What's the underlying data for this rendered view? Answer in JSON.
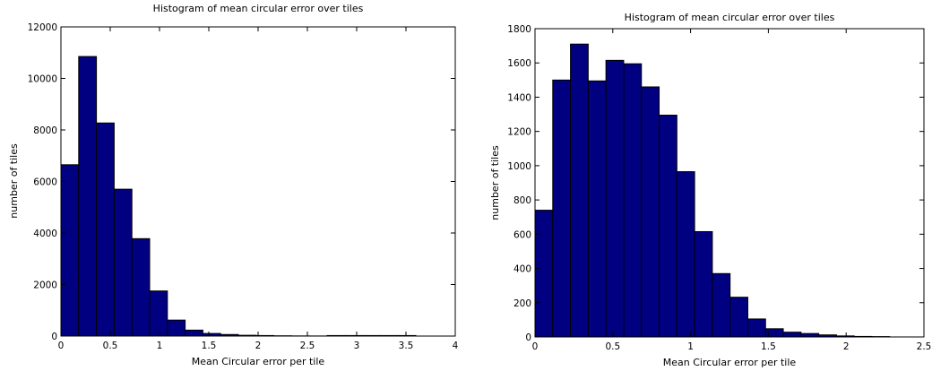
{
  "chart_data": [
    {
      "type": "bar",
      "title": "Histogram of mean circular error over tiles",
      "xlabel": "Mean Circular error per tile",
      "ylabel": "number of tiles",
      "xlim": [
        0,
        4
      ],
      "ylim": [
        0,
        12000
      ],
      "xticks": [
        "0",
        "0.5",
        "1",
        "1.5",
        "2",
        "2.5",
        "3",
        "3.5",
        "4"
      ],
      "yticks": [
        "0",
        "2000",
        "4000",
        "6000",
        "8000",
        "10000",
        "12000"
      ],
      "bar_color": "#000080",
      "bin_width": 0.18,
      "bins": [
        {
          "x": 0.0,
          "value": 6650
        },
        {
          "x": 0.18,
          "value": 10850
        },
        {
          "x": 0.36,
          "value": 8270
        },
        {
          "x": 0.54,
          "value": 5700
        },
        {
          "x": 0.72,
          "value": 3780
        },
        {
          "x": 0.9,
          "value": 1750
        },
        {
          "x": 1.08,
          "value": 620
        },
        {
          "x": 1.26,
          "value": 230
        },
        {
          "x": 1.44,
          "value": 100
        },
        {
          "x": 1.62,
          "value": 60
        },
        {
          "x": 1.8,
          "value": 30
        },
        {
          "x": 1.98,
          "value": 20
        },
        {
          "x": 2.16,
          "value": 10
        },
        {
          "x": 2.34,
          "value": 5
        },
        {
          "x": 2.52,
          "value": 3
        },
        {
          "x": 2.7,
          "value": 20
        },
        {
          "x": 2.88,
          "value": 20
        },
        {
          "x": 3.06,
          "value": 20
        },
        {
          "x": 3.24,
          "value": 20
        },
        {
          "x": 3.42,
          "value": 20
        }
      ]
    },
    {
      "type": "bar",
      "title": "Histogram of mean circular error over tiles",
      "xlabel": "Mean Circular error per tile",
      "ylabel": "number of tiles",
      "xlim": [
        0,
        2.5
      ],
      "ylim": [
        0,
        1800
      ],
      "xticks": [
        "0",
        "0.5",
        "1",
        "1.5",
        "2",
        "2.5"
      ],
      "yticks": [
        "0",
        "200",
        "400",
        "600",
        "800",
        "1000",
        "1200",
        "1400",
        "1600",
        "1800"
      ],
      "bar_color": "#000080",
      "bin_width": 0.114,
      "bins": [
        {
          "x": 0.0,
          "value": 740
        },
        {
          "x": 0.114,
          "value": 1500
        },
        {
          "x": 0.228,
          "value": 1710
        },
        {
          "x": 0.342,
          "value": 1495
        },
        {
          "x": 0.456,
          "value": 1615
        },
        {
          "x": 0.57,
          "value": 1595
        },
        {
          "x": 0.684,
          "value": 1460
        },
        {
          "x": 0.798,
          "value": 1295
        },
        {
          "x": 0.912,
          "value": 965
        },
        {
          "x": 1.026,
          "value": 615
        },
        {
          "x": 1.14,
          "value": 370
        },
        {
          "x": 1.254,
          "value": 232
        },
        {
          "x": 1.368,
          "value": 105
        },
        {
          "x": 1.482,
          "value": 48
        },
        {
          "x": 1.596,
          "value": 28
        },
        {
          "x": 1.71,
          "value": 20
        },
        {
          "x": 1.824,
          "value": 12
        },
        {
          "x": 1.938,
          "value": 6
        },
        {
          "x": 2.052,
          "value": 3
        },
        {
          "x": 2.166,
          "value": 2
        }
      ]
    }
  ]
}
